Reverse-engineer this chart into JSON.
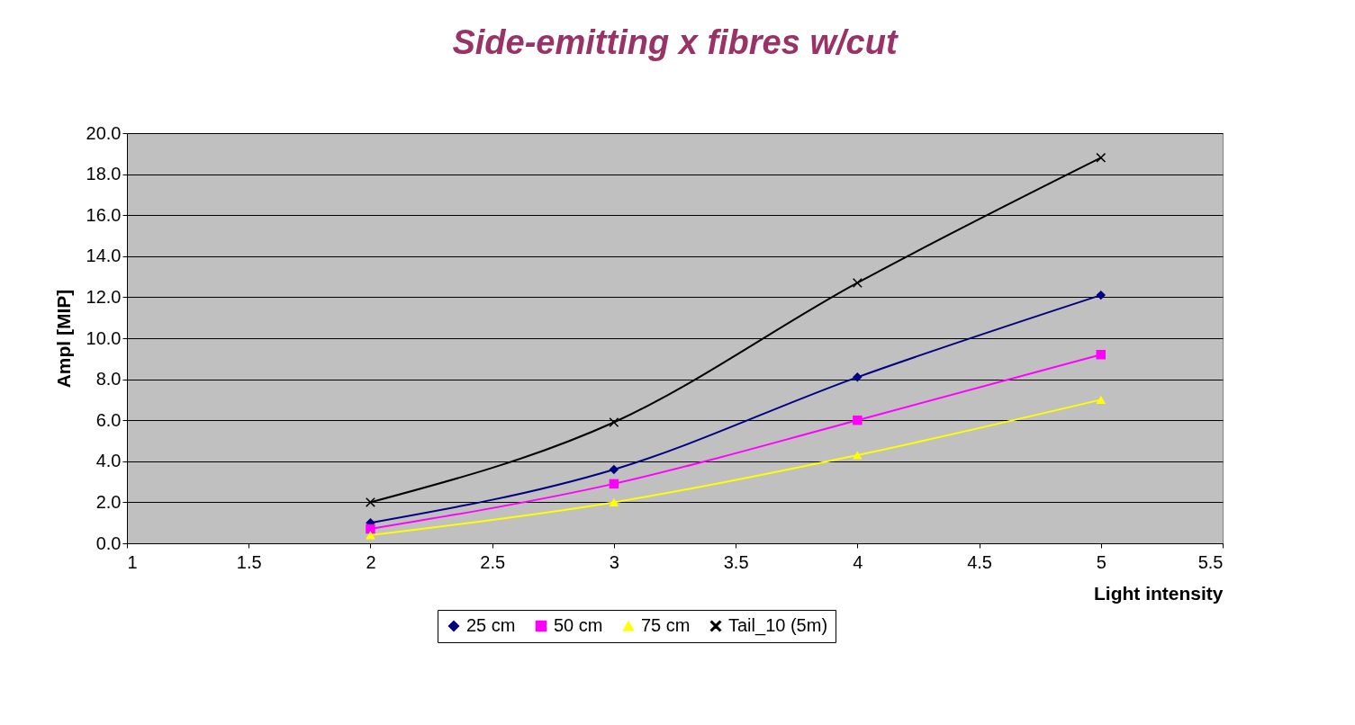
{
  "chart_data": {
    "type": "line",
    "title": "Side-emitting x fibres w/cut",
    "xlabel": "Light intensity",
    "ylabel": "Ampl [MIP]",
    "x": [
      2,
      3,
      4,
      5
    ],
    "series": [
      {
        "name": "25 cm",
        "color": "#000080",
        "marker": "diamond",
        "values": [
          1.0,
          3.6,
          8.1,
          12.1
        ]
      },
      {
        "name": "50 cm",
        "color": "#ff00ff",
        "marker": "square",
        "values": [
          0.7,
          2.9,
          6.0,
          9.2
        ]
      },
      {
        "name": "75 cm",
        "color": "#ffff00",
        "marker": "triangle",
        "values": [
          0.4,
          2.0,
          4.3,
          7.0
        ]
      },
      {
        "name": "Tail_10 (5m)",
        "color": "#000000",
        "marker": "cross",
        "values": [
          2.0,
          5.9,
          12.7,
          18.8
        ]
      }
    ],
    "xlim": [
      1,
      5.5
    ],
    "xticks": [
      1,
      1.5,
      2,
      2.5,
      3,
      3.5,
      4,
      4.5,
      5,
      5.5
    ],
    "ylim": [
      0,
      20
    ],
    "yticks": [
      {
        "value": 0,
        "label": "0.0"
      },
      {
        "value": 2,
        "label": "2.0"
      },
      {
        "value": 4,
        "label": "4.0"
      },
      {
        "value": 6,
        "label": "6.0"
      },
      {
        "value": 8,
        "label": "8.0"
      },
      {
        "value": 10,
        "label": "10.0"
      },
      {
        "value": 12,
        "label": "12.0"
      },
      {
        "value": 14,
        "label": "14.0"
      },
      {
        "value": 16,
        "label": "16.0"
      },
      {
        "value": 18,
        "label": "18.0"
      },
      {
        "value": 20,
        "label": "20.0"
      }
    ],
    "grid": "y",
    "legend": "bottom",
    "line_style": "solid"
  }
}
